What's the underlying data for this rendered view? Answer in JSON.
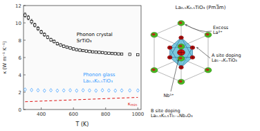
{
  "chart_data": {
    "type": "scatter",
    "x_label": "T (K)",
    "y_label": "κ (W m⁻¹ K⁻¹)",
    "xlim": [
      290,
      1020
    ],
    "ylim": [
      0,
      12
    ],
    "xticks": [
      400,
      600,
      800,
      1000
    ],
    "yticks": [
      0,
      2,
      4,
      6,
      8,
      10,
      12
    ],
    "grid": false,
    "series": [
      {
        "name": "SrTiO₃",
        "annotation": "Phonon crystal",
        "type": "scatter",
        "marker": "square",
        "color": "#000000",
        "x": [
          300,
          320,
          340,
          360,
          380,
          400,
          420,
          440,
          460,
          480,
          500,
          520,
          540,
          560,
          580,
          600,
          620,
          640,
          660,
          680,
          700,
          720,
          740,
          760,
          780,
          800,
          820,
          840,
          860,
          880,
          900,
          950,
          1000
        ],
        "values": [
          10.9,
          10.6,
          10.15,
          9.75,
          9.35,
          8.95,
          8.65,
          8.35,
          8.05,
          7.85,
          7.6,
          7.45,
          7.3,
          7.2,
          7.1,
          7.0,
          6.9,
          6.85,
          6.8,
          6.75,
          6.7,
          6.65,
          6.62,
          6.6,
          6.57,
          6.52,
          6.5,
          6.47,
          6.45,
          6.42,
          6.4,
          6.37,
          6.32
        ],
        "yerr": [
          0.25,
          0.25,
          0.25,
          0.22,
          0.22,
          0.2,
          0.2,
          0.18,
          0.18,
          0.17,
          0.16,
          0.15,
          0.15,
          0.14,
          0.14,
          0.13,
          0.13,
          0.12,
          0.12,
          0.11,
          0.11,
          0.11,
          0.1,
          0.1,
          0.1,
          0.1,
          0.1,
          0.1,
          0.1,
          0.1,
          0.1,
          0.1,
          0.1
        ]
      },
      {
        "name": "La₀.₅K₀.₅TiO₃",
        "annotation": "Phonon glass",
        "type": "scatter",
        "marker": "diamond",
        "color": "#3399ff",
        "x": [
          300,
          340,
          380,
          420,
          460,
          500,
          540,
          580,
          620,
          660,
          700,
          740,
          780,
          820,
          860,
          900,
          950,
          1000
        ],
        "values": [
          2.3,
          2.25,
          2.22,
          2.18,
          2.22,
          2.18,
          2.2,
          2.22,
          2.18,
          2.22,
          2.2,
          2.18,
          2.22,
          2.2,
          2.18,
          2.2,
          2.2,
          2.2
        ]
      },
      {
        "name": "κmin",
        "type": "line",
        "line_style": "dashed",
        "color": "#dd1111",
        "x": [
          300,
          1000
        ],
        "values": [
          0.9,
          1.4
        ]
      }
    ],
    "annotations": [
      "La₀.₅K₀.₅TiO₃  (Pm3̅m)",
      "Nb⁵⁺",
      "Excess\nLa³⁺",
      "A site doping\nLa₁₋ₓKₓTiO₃",
      "B site doping\nLa₀.₅K₀.₅Ti₁₋ₓNbₓO₃"
    ]
  }
}
